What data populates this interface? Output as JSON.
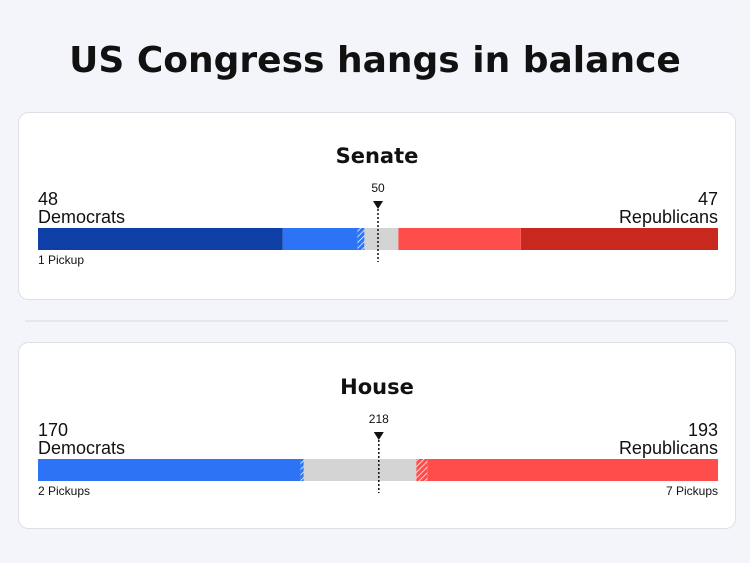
{
  "title": "US Congress hangs in balance",
  "chart_data": [
    {
      "type": "balance",
      "title": "Senate",
      "xlim": [
        0,
        100
      ],
      "majority": 50,
      "left": {
        "name": "Democrats",
        "total": 48,
        "pickups": "1 Pickup",
        "segments": [
          {
            "value": 36,
            "color": "#0d3fa6"
          },
          {
            "value": 11,
            "color": "#2c74f5"
          },
          {
            "value": 1,
            "color": "#2c74f5",
            "hatched": true
          }
        ]
      },
      "undecided": {
        "value": 5,
        "color": "#d4d4d4"
      },
      "right": {
        "name": "Republicans",
        "total": 47,
        "segments": [
          {
            "value": 29,
            "color": "#c8281d"
          },
          {
            "value": 18,
            "color": "#fe4d4b"
          }
        ]
      }
    },
    {
      "type": "balance",
      "title": "House",
      "xlim": [
        0,
        435
      ],
      "majority": 218,
      "left": {
        "name": "Democrats",
        "total": 170,
        "pickups": "2 Pickups",
        "segments": [
          {
            "value": 168,
            "color": "#2c74f5"
          },
          {
            "value": 2,
            "color": "#2c74f5",
            "hatched": true
          }
        ]
      },
      "undecided": {
        "value": 72,
        "color": "#d4d4d4"
      },
      "right": {
        "name": "Republicans",
        "total": 193,
        "pickups": "7 Pickups",
        "segments": [
          {
            "value": 186,
            "color": "#fe4d4b"
          },
          {
            "value": 7,
            "color": "#fe4d4b",
            "hatched": true
          }
        ]
      }
    }
  ]
}
